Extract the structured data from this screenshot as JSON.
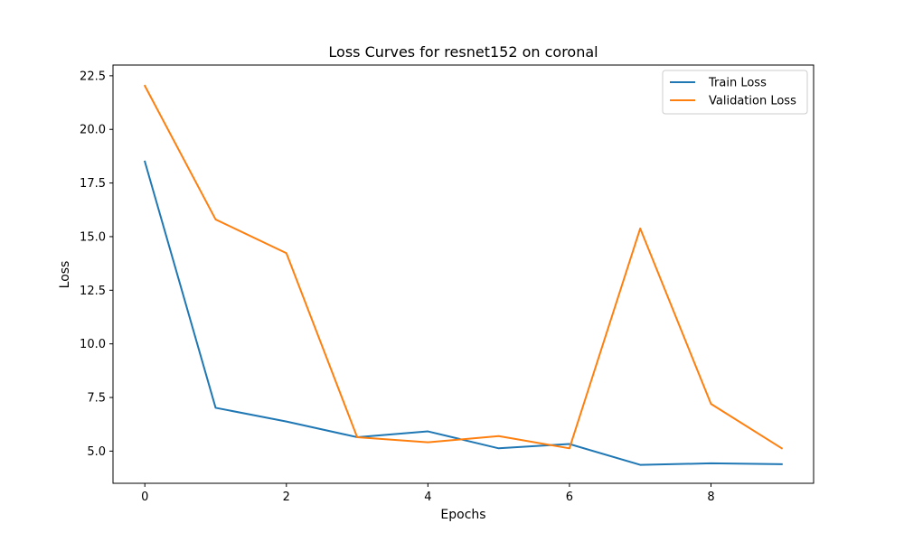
{
  "chart_data": {
    "type": "line",
    "title": "Loss Curves for resnet152 on coronal",
    "xlabel": "Epochs",
    "ylabel": "Loss",
    "xlim": [
      -0.45,
      9.45
    ],
    "ylim": [
      3.5,
      23.0
    ],
    "x": [
      0,
      1,
      2,
      3,
      4,
      5,
      6,
      7,
      8,
      9
    ],
    "x_ticks": [
      0,
      2,
      4,
      6,
      8
    ],
    "x_tick_labels": [
      "0",
      "2",
      "4",
      "6",
      "8"
    ],
    "y_ticks": [
      5.0,
      7.5,
      10.0,
      12.5,
      15.0,
      17.5,
      20.0,
      22.5
    ],
    "y_tick_labels": [
      "5.0",
      "7.5",
      "10.0",
      "12.5",
      "15.0",
      "17.5",
      "20.0",
      "22.5"
    ],
    "grid": false,
    "legend_position": "top-right",
    "series": [
      {
        "name": "Train Loss",
        "color": "#1f77b4",
        "values": [
          18.5,
          7.02,
          6.38,
          5.65,
          5.92,
          5.13,
          5.33,
          4.36,
          4.43,
          4.39
        ]
      },
      {
        "name": "Validation Loss",
        "color": "#ff7f0e",
        "values": [
          22.03,
          15.8,
          14.23,
          5.65,
          5.41,
          5.7,
          5.13,
          15.38,
          7.2,
          5.13
        ]
      }
    ]
  }
}
